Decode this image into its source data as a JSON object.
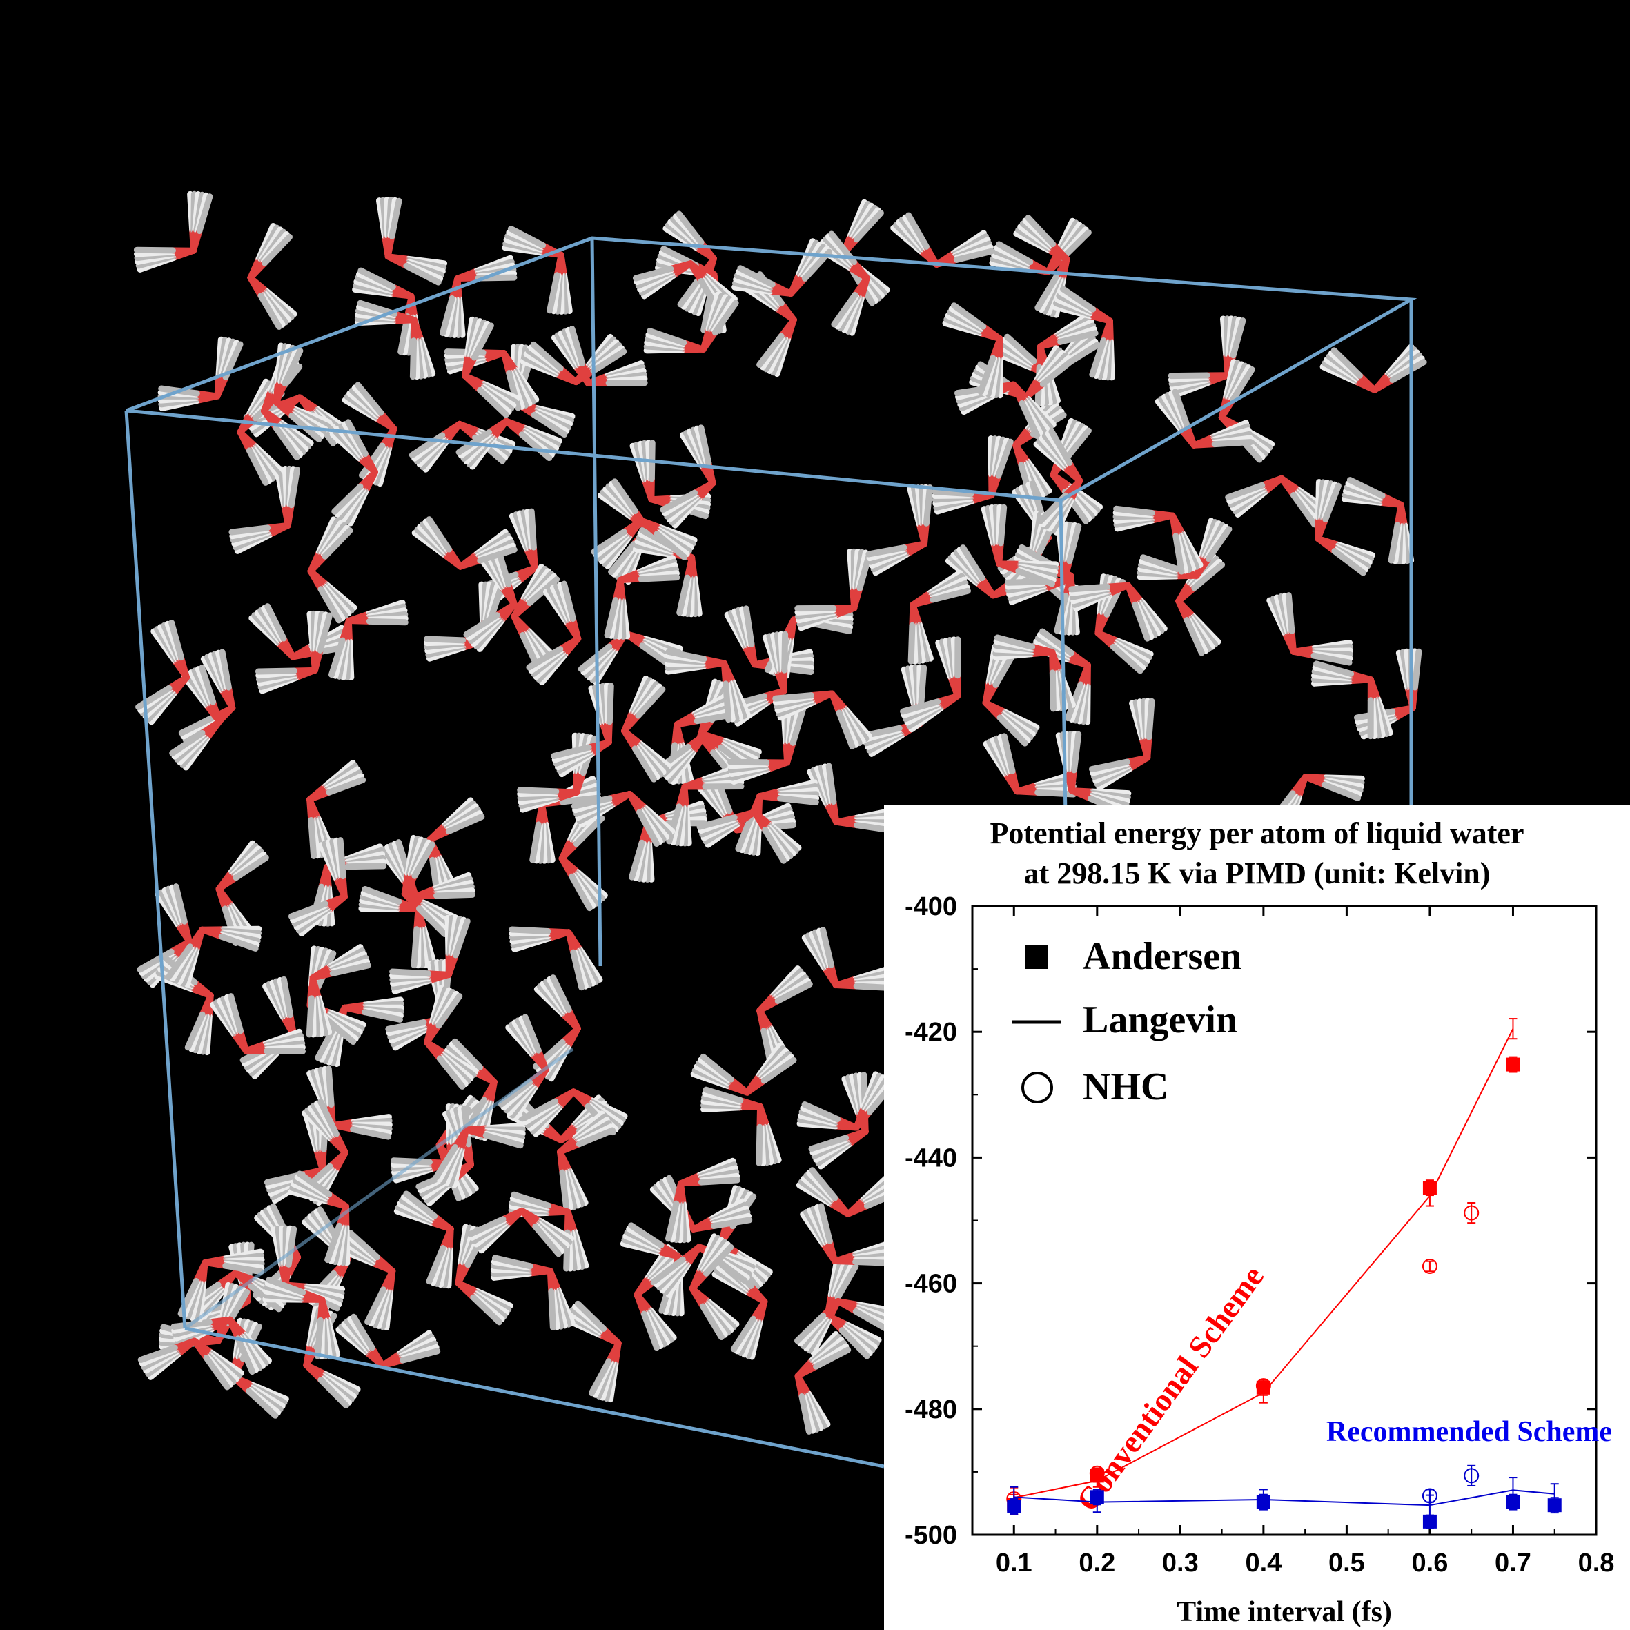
{
  "chart_data": {
    "type": "scatter",
    "title": [
      "Potential energy per atom of liquid water",
      "at 298.15 K via PIMD (unit: Kelvin)"
    ],
    "xlabel": "Time interval (fs)",
    "ylabel": "",
    "xlim": [
      0.05,
      0.8
    ],
    "ylim": [
      -500,
      -400
    ],
    "xticks": [
      0.1,
      0.2,
      0.3,
      0.4,
      0.5,
      0.6,
      0.7,
      0.8
    ],
    "xtick_labels": [
      "0.1",
      "0.2",
      "0.3",
      "0.4",
      "0.5",
      "0.6",
      "0.7",
      "0.8"
    ],
    "yticks": [
      -400,
      -420,
      -440,
      -460,
      -480,
      -500
    ],
    "ytick_labels": [
      "-400",
      "-420",
      "-440",
      "-460",
      "-480",
      "-500"
    ],
    "legend": {
      "position": "top-left",
      "entries": [
        {
          "label": "Andersen",
          "marker": "filled-square"
        },
        {
          "label": "Langevin",
          "marker": "line"
        },
        {
          "label": "NHC",
          "marker": "open-circle"
        }
      ]
    },
    "annotations": [
      {
        "text": "Conventional Scheme",
        "color": "#ff0000"
      },
      {
        "text": "Recommended Scheme",
        "color": "#0000ee"
      }
    ],
    "series": [
      {
        "scheme": "conventional",
        "thermostat": "Andersen",
        "marker": "filled-square",
        "color": "#ff0000",
        "x": [
          0.1,
          0.2,
          0.4,
          0.6,
          0.7
        ],
        "y": [
          -495.2,
          -490.6,
          -476.6,
          -444.8,
          -425.2
        ],
        "err": [
          1.6,
          1.0,
          1.2,
          1.2,
          1.2
        ]
      },
      {
        "scheme": "conventional",
        "thermostat": "Langevin",
        "marker": "line",
        "color": "#ff0000",
        "x": [
          0.1,
          0.2,
          0.4,
          0.6,
          0.7
        ],
        "y": [
          -494.1,
          -491.4,
          -477.4,
          -446.1,
          -419.5
        ],
        "err": [
          1.6,
          1.0,
          1.6,
          1.6,
          1.6
        ]
      },
      {
        "scheme": "conventional",
        "thermostat": "NHC",
        "marker": "open-circle",
        "color": "#ff0000",
        "x": [
          0.1,
          0.2,
          0.4,
          0.6,
          0.65
        ],
        "y": [
          -494.3,
          -490.2,
          -476.3,
          -457.3,
          -448.8
        ],
        "err": [
          1.0,
          0.8,
          1.0,
          0.8,
          1.6
        ]
      },
      {
        "scheme": "recommended",
        "thermostat": "Andersen",
        "marker": "filled-square",
        "color": "#0000cc",
        "x": [
          0.1,
          0.2,
          0.4,
          0.6,
          0.7,
          0.75
        ],
        "y": [
          -495.5,
          -494.0,
          -494.8,
          -497.9,
          -494.8,
          -495.3
        ],
        "err": [
          1.2,
          1.2,
          1.2,
          1.0,
          1.2,
          1.2
        ]
      },
      {
        "scheme": "recommended",
        "thermostat": "Langevin",
        "marker": "line",
        "color": "#0000cc",
        "x": [
          0.1,
          0.2,
          0.4,
          0.6,
          0.7,
          0.75
        ],
        "y": [
          -494.0,
          -494.8,
          -494.4,
          -495.3,
          -492.9,
          -493.5
        ],
        "err": [
          1.6,
          1.6,
          1.6,
          1.6,
          2.0,
          1.6
        ]
      },
      {
        "scheme": "recommended",
        "thermostat": "NHC",
        "marker": "open-circle",
        "color": "#0000cc",
        "x": [
          0.6,
          0.65
        ],
        "y": [
          -493.8,
          -490.6
        ],
        "err": [
          1.0,
          1.6
        ]
      }
    ]
  }
}
